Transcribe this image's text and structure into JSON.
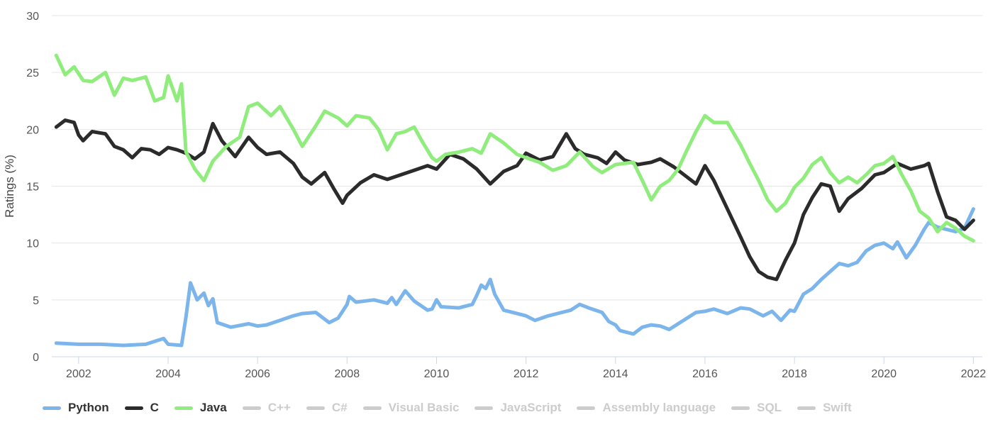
{
  "chart_data": {
    "type": "line",
    "xlabel": "",
    "ylabel": "Ratings (%)",
    "xlim": [
      2001.4,
      2022.2
    ],
    "ylim": [
      0,
      30
    ],
    "x_ticks": [
      "2002",
      "2004",
      "2006",
      "2008",
      "2010",
      "2012",
      "2014",
      "2016",
      "2018",
      "2020",
      "2022"
    ],
    "y_ticks": [
      "0",
      "5",
      "10",
      "15",
      "20",
      "25",
      "30"
    ],
    "grid": "horizontal",
    "legend_position": "bottom-left",
    "series": [
      {
        "name": "Python",
        "color": "#7cb5ec",
        "visible": true,
        "points": [
          [
            2001.5,
            1.2
          ],
          [
            2002.0,
            1.1
          ],
          [
            2002.5,
            1.1
          ],
          [
            2003.0,
            1.0
          ],
          [
            2003.5,
            1.1
          ],
          [
            2003.9,
            1.6
          ],
          [
            2004.0,
            1.1
          ],
          [
            2004.3,
            1.0
          ],
          [
            2004.4,
            3.5
          ],
          [
            2004.5,
            6.5
          ],
          [
            2004.65,
            5.0
          ],
          [
            2004.8,
            5.6
          ],
          [
            2004.9,
            4.5
          ],
          [
            2005.0,
            5.1
          ],
          [
            2005.1,
            3.0
          ],
          [
            2005.4,
            2.6
          ],
          [
            2005.8,
            2.9
          ],
          [
            2006.0,
            2.7
          ],
          [
            2006.2,
            2.8
          ],
          [
            2006.5,
            3.2
          ],
          [
            2006.8,
            3.6
          ],
          [
            2007.0,
            3.8
          ],
          [
            2007.3,
            3.9
          ],
          [
            2007.6,
            3.0
          ],
          [
            2007.8,
            3.4
          ],
          [
            2008.0,
            4.6
          ],
          [
            2008.05,
            5.3
          ],
          [
            2008.2,
            4.8
          ],
          [
            2008.6,
            5.0
          ],
          [
            2008.9,
            4.7
          ],
          [
            2009.0,
            5.2
          ],
          [
            2009.1,
            4.6
          ],
          [
            2009.3,
            5.8
          ],
          [
            2009.5,
            4.9
          ],
          [
            2009.8,
            4.1
          ],
          [
            2009.9,
            4.2
          ],
          [
            2010.0,
            5.0
          ],
          [
            2010.1,
            4.4
          ],
          [
            2010.5,
            4.3
          ],
          [
            2010.8,
            4.6
          ],
          [
            2010.9,
            5.4
          ],
          [
            2011.0,
            6.3
          ],
          [
            2011.1,
            6.0
          ],
          [
            2011.2,
            6.8
          ],
          [
            2011.3,
            5.5
          ],
          [
            2011.5,
            4.1
          ],
          [
            2011.8,
            3.8
          ],
          [
            2012.0,
            3.6
          ],
          [
            2012.2,
            3.2
          ],
          [
            2012.5,
            3.6
          ],
          [
            2012.8,
            3.9
          ],
          [
            2013.0,
            4.1
          ],
          [
            2013.2,
            4.6
          ],
          [
            2013.4,
            4.3
          ],
          [
            2013.7,
            3.9
          ],
          [
            2013.85,
            3.1
          ],
          [
            2014.0,
            2.8
          ],
          [
            2014.1,
            2.3
          ],
          [
            2014.3,
            2.1
          ],
          [
            2014.4,
            2.0
          ],
          [
            2014.6,
            2.6
          ],
          [
            2014.8,
            2.8
          ],
          [
            2015.0,
            2.7
          ],
          [
            2015.2,
            2.4
          ],
          [
            2015.4,
            2.9
          ],
          [
            2015.6,
            3.4
          ],
          [
            2015.8,
            3.9
          ],
          [
            2016.0,
            4.0
          ],
          [
            2016.2,
            4.2
          ],
          [
            2016.5,
            3.8
          ],
          [
            2016.8,
            4.3
          ],
          [
            2017.0,
            4.2
          ],
          [
            2017.3,
            3.6
          ],
          [
            2017.5,
            4.0
          ],
          [
            2017.7,
            3.2
          ],
          [
            2017.9,
            4.1
          ],
          [
            2018.0,
            4.0
          ],
          [
            2018.2,
            5.5
          ],
          [
            2018.4,
            6.0
          ],
          [
            2018.6,
            6.8
          ],
          [
            2018.8,
            7.5
          ],
          [
            2019.0,
            8.2
          ],
          [
            2019.2,
            8.0
          ],
          [
            2019.4,
            8.3
          ],
          [
            2019.6,
            9.3
          ],
          [
            2019.8,
            9.8
          ],
          [
            2020.0,
            10.0
          ],
          [
            2020.2,
            9.5
          ],
          [
            2020.3,
            10.1
          ],
          [
            2020.5,
            8.7
          ],
          [
            2020.7,
            9.8
          ],
          [
            2020.9,
            11.2
          ],
          [
            2021.0,
            11.8
          ],
          [
            2021.2,
            11.4
          ],
          [
            2021.4,
            11.2
          ],
          [
            2021.6,
            11.0
          ],
          [
            2021.8,
            11.3
          ],
          [
            2022.0,
            13.0
          ]
        ]
      },
      {
        "name": "C",
        "color": "#2b2b2b",
        "visible": true,
        "points": [
          [
            2001.5,
            20.2
          ],
          [
            2001.7,
            20.8
          ],
          [
            2001.9,
            20.6
          ],
          [
            2002.0,
            19.5
          ],
          [
            2002.1,
            19.0
          ],
          [
            2002.3,
            19.8
          ],
          [
            2002.6,
            19.6
          ],
          [
            2002.8,
            18.5
          ],
          [
            2003.0,
            18.2
          ],
          [
            2003.2,
            17.5
          ],
          [
            2003.4,
            18.3
          ],
          [
            2003.6,
            18.2
          ],
          [
            2003.8,
            17.8
          ],
          [
            2004.0,
            18.4
          ],
          [
            2004.2,
            18.2
          ],
          [
            2004.4,
            17.9
          ],
          [
            2004.6,
            17.4
          ],
          [
            2004.8,
            18.0
          ],
          [
            2005.0,
            20.5
          ],
          [
            2005.2,
            19.0
          ],
          [
            2005.5,
            17.6
          ],
          [
            2005.8,
            19.3
          ],
          [
            2006.0,
            18.4
          ],
          [
            2006.2,
            17.8
          ],
          [
            2006.5,
            18.0
          ],
          [
            2006.8,
            17.0
          ],
          [
            2007.0,
            15.8
          ],
          [
            2007.2,
            15.2
          ],
          [
            2007.5,
            16.2
          ],
          [
            2007.7,
            14.8
          ],
          [
            2007.9,
            13.5
          ],
          [
            2008.0,
            14.2
          ],
          [
            2008.3,
            15.3
          ],
          [
            2008.6,
            16.0
          ],
          [
            2008.9,
            15.6
          ],
          [
            2009.2,
            16.0
          ],
          [
            2009.5,
            16.4
          ],
          [
            2009.8,
            16.8
          ],
          [
            2010.0,
            16.5
          ],
          [
            2010.3,
            17.8
          ],
          [
            2010.6,
            17.4
          ],
          [
            2010.9,
            16.5
          ],
          [
            2011.2,
            15.2
          ],
          [
            2011.5,
            16.3
          ],
          [
            2011.8,
            16.8
          ],
          [
            2012.0,
            17.9
          ],
          [
            2012.3,
            17.3
          ],
          [
            2012.6,
            17.6
          ],
          [
            2012.9,
            19.6
          ],
          [
            2013.1,
            18.3
          ],
          [
            2013.3,
            17.8
          ],
          [
            2013.6,
            17.5
          ],
          [
            2013.8,
            17.0
          ],
          [
            2014.0,
            18.0
          ],
          [
            2014.2,
            17.3
          ],
          [
            2014.5,
            16.9
          ],
          [
            2014.8,
            17.1
          ],
          [
            2015.0,
            17.4
          ],
          [
            2015.3,
            16.7
          ],
          [
            2015.6,
            15.8
          ],
          [
            2015.8,
            15.2
          ],
          [
            2016.0,
            16.8
          ],
          [
            2016.2,
            15.5
          ],
          [
            2016.5,
            13.0
          ],
          [
            2016.8,
            10.5
          ],
          [
            2017.0,
            8.8
          ],
          [
            2017.2,
            7.5
          ],
          [
            2017.4,
            7.0
          ],
          [
            2017.6,
            6.8
          ],
          [
            2017.8,
            8.5
          ],
          [
            2018.0,
            10.0
          ],
          [
            2018.2,
            12.5
          ],
          [
            2018.4,
            14.0
          ],
          [
            2018.6,
            15.2
          ],
          [
            2018.8,
            15.0
          ],
          [
            2019.0,
            12.8
          ],
          [
            2019.2,
            13.9
          ],
          [
            2019.5,
            14.8
          ],
          [
            2019.8,
            16.0
          ],
          [
            2020.0,
            16.2
          ],
          [
            2020.3,
            17.0
          ],
          [
            2020.6,
            16.5
          ],
          [
            2020.9,
            16.8
          ],
          [
            2021.0,
            17.0
          ],
          [
            2021.2,
            14.5
          ],
          [
            2021.4,
            12.3
          ],
          [
            2021.6,
            12.0
          ],
          [
            2021.8,
            11.2
          ],
          [
            2022.0,
            12.0
          ]
        ]
      },
      {
        "name": "Java",
        "color": "#90ed7d",
        "visible": true,
        "points": [
          [
            2001.5,
            26.5
          ],
          [
            2001.7,
            24.8
          ],
          [
            2001.9,
            25.5
          ],
          [
            2002.1,
            24.3
          ],
          [
            2002.3,
            24.2
          ],
          [
            2002.6,
            25.0
          ],
          [
            2002.8,
            23.0
          ],
          [
            2003.0,
            24.5
          ],
          [
            2003.2,
            24.3
          ],
          [
            2003.5,
            24.6
          ],
          [
            2003.7,
            22.5
          ],
          [
            2003.9,
            22.8
          ],
          [
            2004.0,
            24.7
          ],
          [
            2004.2,
            22.5
          ],
          [
            2004.3,
            24.0
          ],
          [
            2004.4,
            18.0
          ],
          [
            2004.6,
            16.5
          ],
          [
            2004.8,
            15.5
          ],
          [
            2005.0,
            17.2
          ],
          [
            2005.3,
            18.5
          ],
          [
            2005.6,
            19.3
          ],
          [
            2005.8,
            22.0
          ],
          [
            2006.0,
            22.3
          ],
          [
            2006.3,
            21.2
          ],
          [
            2006.5,
            22.0
          ],
          [
            2006.8,
            20.0
          ],
          [
            2007.0,
            18.5
          ],
          [
            2007.3,
            20.3
          ],
          [
            2007.5,
            21.6
          ],
          [
            2007.8,
            21.0
          ],
          [
            2008.0,
            20.3
          ],
          [
            2008.2,
            21.2
          ],
          [
            2008.5,
            21.0
          ],
          [
            2008.7,
            20.0
          ],
          [
            2008.9,
            18.2
          ],
          [
            2009.1,
            19.6
          ],
          [
            2009.3,
            19.8
          ],
          [
            2009.5,
            20.2
          ],
          [
            2009.7,
            18.8
          ],
          [
            2009.9,
            17.5
          ],
          [
            2010.0,
            17.2
          ],
          [
            2010.2,
            17.8
          ],
          [
            2010.5,
            18.0
          ],
          [
            2010.8,
            18.3
          ],
          [
            2011.0,
            17.9
          ],
          [
            2011.2,
            19.6
          ],
          [
            2011.5,
            18.8
          ],
          [
            2011.8,
            17.8
          ],
          [
            2012.0,
            17.5
          ],
          [
            2012.3,
            17.1
          ],
          [
            2012.6,
            16.4
          ],
          [
            2012.9,
            16.8
          ],
          [
            2013.0,
            17.2
          ],
          [
            2013.2,
            18.0
          ],
          [
            2013.5,
            16.7
          ],
          [
            2013.7,
            16.2
          ],
          [
            2014.0,
            16.9
          ],
          [
            2014.2,
            17.0
          ],
          [
            2014.4,
            17.1
          ],
          [
            2014.6,
            15.5
          ],
          [
            2014.8,
            13.8
          ],
          [
            2015.0,
            15.0
          ],
          [
            2015.2,
            15.5
          ],
          [
            2015.4,
            16.5
          ],
          [
            2015.6,
            18.2
          ],
          [
            2015.8,
            19.8
          ],
          [
            2016.0,
            21.2
          ],
          [
            2016.2,
            20.6
          ],
          [
            2016.5,
            20.6
          ],
          [
            2016.8,
            18.6
          ],
          [
            2017.0,
            17.0
          ],
          [
            2017.2,
            15.5
          ],
          [
            2017.4,
            13.8
          ],
          [
            2017.6,
            12.8
          ],
          [
            2017.8,
            13.5
          ],
          [
            2018.0,
            14.9
          ],
          [
            2018.2,
            15.7
          ],
          [
            2018.4,
            16.9
          ],
          [
            2018.6,
            17.5
          ],
          [
            2018.8,
            16.2
          ],
          [
            2019.0,
            15.3
          ],
          [
            2019.2,
            15.8
          ],
          [
            2019.4,
            15.3
          ],
          [
            2019.6,
            16.0
          ],
          [
            2019.8,
            16.8
          ],
          [
            2020.0,
            17.0
          ],
          [
            2020.2,
            17.6
          ],
          [
            2020.4,
            16.0
          ],
          [
            2020.6,
            14.6
          ],
          [
            2020.8,
            12.8
          ],
          [
            2021.0,
            12.2
          ],
          [
            2021.2,
            11.0
          ],
          [
            2021.4,
            11.8
          ],
          [
            2021.6,
            11.3
          ],
          [
            2021.8,
            10.6
          ],
          [
            2022.0,
            10.2
          ]
        ]
      },
      {
        "name": "C++",
        "color": "#cccccc",
        "visible": false,
        "points": []
      },
      {
        "name": "C#",
        "color": "#cccccc",
        "visible": false,
        "points": []
      },
      {
        "name": "Visual Basic",
        "color": "#cccccc",
        "visible": false,
        "points": []
      },
      {
        "name": "JavaScript",
        "color": "#cccccc",
        "visible": false,
        "points": []
      },
      {
        "name": "Assembly language",
        "color": "#cccccc",
        "visible": false,
        "points": []
      },
      {
        "name": "SQL",
        "color": "#cccccc",
        "visible": false,
        "points": []
      },
      {
        "name": "Swift",
        "color": "#cccccc",
        "visible": false,
        "points": []
      }
    ]
  }
}
